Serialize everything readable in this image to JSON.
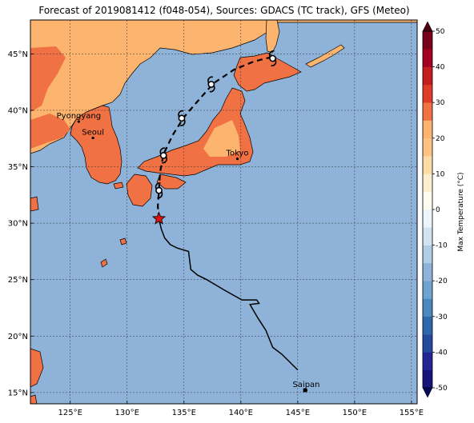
{
  "title": "Forecast of 2019081412 (f048-054), Sources: GDACS (TC track), GFS (Meteo)",
  "map": {
    "lon_range": [
      121.5,
      155.5
    ],
    "lat_range": [
      14,
      48
    ],
    "lon_ticks": [
      {
        "lon": 125,
        "label": "125°E"
      },
      {
        "lon": 130,
        "label": "130°E"
      },
      {
        "lon": 135,
        "label": "135°E"
      },
      {
        "lon": 140,
        "label": "140°E"
      },
      {
        "lon": 145,
        "label": "145°E"
      },
      {
        "lon": 150,
        "label": "150°E"
      },
      {
        "lon": 155,
        "label": "155°E"
      }
    ],
    "lat_ticks": [
      {
        "lat": 15,
        "label": "15°N"
      },
      {
        "lat": 20,
        "label": "20°N"
      },
      {
        "lat": 25,
        "label": "25°N"
      },
      {
        "lat": 30,
        "label": "30°N"
      },
      {
        "lat": 35,
        "label": "35°N"
      },
      {
        "lat": 40,
        "label": "40°N"
      },
      {
        "lat": 45,
        "label": "45°N"
      }
    ],
    "cities": [
      {
        "name": "Pyongyang",
        "lon": 125.75,
        "lat": 39.0
      },
      {
        "name": "Seoul",
        "lon": 127.0,
        "lat": 37.55
      },
      {
        "name": "Tokyo",
        "lon": 139.7,
        "lat": 35.7
      },
      {
        "name": "Saipan",
        "lon": 145.75,
        "lat": 15.2
      }
    ],
    "ocean_color": "#8fb3d8",
    "grid": true
  },
  "track": {
    "past": [
      [
        145.0,
        17.0
      ],
      [
        143.6,
        18.4
      ],
      [
        142.8,
        19.0
      ],
      [
        142.2,
        20.5
      ],
      [
        141.5,
        21.6
      ],
      [
        140.8,
        22.8
      ],
      [
        141.6,
        22.9
      ],
      [
        141.4,
        23.2
      ],
      [
        140.1,
        23.2
      ],
      [
        138.5,
        24.1
      ],
      [
        137.0,
        25.0
      ],
      [
        136.2,
        25.4
      ],
      [
        135.6,
        25.9
      ],
      [
        135.4,
        27.5
      ],
      [
        134.4,
        27.8
      ],
      [
        133.8,
        28.1
      ],
      [
        133.3,
        28.7
      ],
      [
        133.0,
        29.5
      ],
      [
        132.8,
        30.4
      ]
    ],
    "forecast": [
      [
        132.8,
        30.4
      ],
      [
        132.7,
        31.5
      ],
      [
        132.8,
        32.9
      ],
      [
        132.9,
        34.5
      ],
      [
        133.2,
        36.1
      ],
      [
        134.0,
        37.8
      ],
      [
        135.0,
        39.4
      ],
      [
        136.2,
        40.8
      ],
      [
        137.6,
        42.4
      ],
      [
        139.4,
        43.6
      ],
      [
        141.1,
        44.3
      ],
      [
        142.2,
        44.6
      ],
      [
        142.7,
        44.7
      ]
    ],
    "current_position": {
      "lon": 132.8,
      "lat": 30.4
    },
    "forecast_markers": [
      {
        "lon": 132.8,
        "lat": 32.9
      },
      {
        "lon": 133.2,
        "lat": 36.0
      },
      {
        "lon": 134.8,
        "lat": 39.3
      },
      {
        "lon": 137.4,
        "lat": 42.3
      },
      {
        "lon": 142.8,
        "lat": 44.6
      }
    ],
    "track_color": "#000000",
    "star_color": "#dd1111"
  },
  "colorbar": {
    "label": "Max Temperature (°C)",
    "min": -50,
    "max": 50,
    "ticks": [
      -50,
      -40,
      -30,
      -20,
      -10,
      0,
      10,
      20,
      30,
      40,
      50
    ],
    "bins": [
      {
        "from": -55,
        "to": -50,
        "color": "#08085a"
      },
      {
        "from": -50,
        "to": -45,
        "color": "#14147a"
      },
      {
        "from": -45,
        "to": -40,
        "color": "#242494"
      },
      {
        "from": -40,
        "to": -35,
        "color": "#244a9e"
      },
      {
        "from": -35,
        "to": -30,
        "color": "#2f67ab"
      },
      {
        "from": -30,
        "to": -25,
        "color": "#4a87bd"
      },
      {
        "from": -25,
        "to": -20,
        "color": "#6ea4cf"
      },
      {
        "from": -20,
        "to": -15,
        "color": "#8fb3d8"
      },
      {
        "from": -15,
        "to": -10,
        "color": "#b0cde5"
      },
      {
        "from": -10,
        "to": -5,
        "color": "#d1e3f1"
      },
      {
        "from": -5,
        "to": 0,
        "color": "#eef5fa"
      },
      {
        "from": 0,
        "to": 5,
        "color": "#fefbf0"
      },
      {
        "from": 5,
        "to": 10,
        "color": "#fdeed0"
      },
      {
        "from": 10,
        "to": 15,
        "color": "#fddba6"
      },
      {
        "from": 15,
        "to": 20,
        "color": "#fcc384"
      },
      {
        "from": 20,
        "to": 25,
        "color": "#fcb46e"
      },
      {
        "from": 25,
        "to": 30,
        "color": "#f07143"
      },
      {
        "from": 30,
        "to": 35,
        "color": "#de3b28"
      },
      {
        "from": 35,
        "to": 40,
        "color": "#c41d20"
      },
      {
        "from": 40,
        "to": 45,
        "color": "#a1001e"
      },
      {
        "from": 45,
        "to": 50,
        "color": "#78001a"
      },
      {
        "from": 50,
        "to": 55,
        "color": "#4a000e"
      }
    ]
  }
}
